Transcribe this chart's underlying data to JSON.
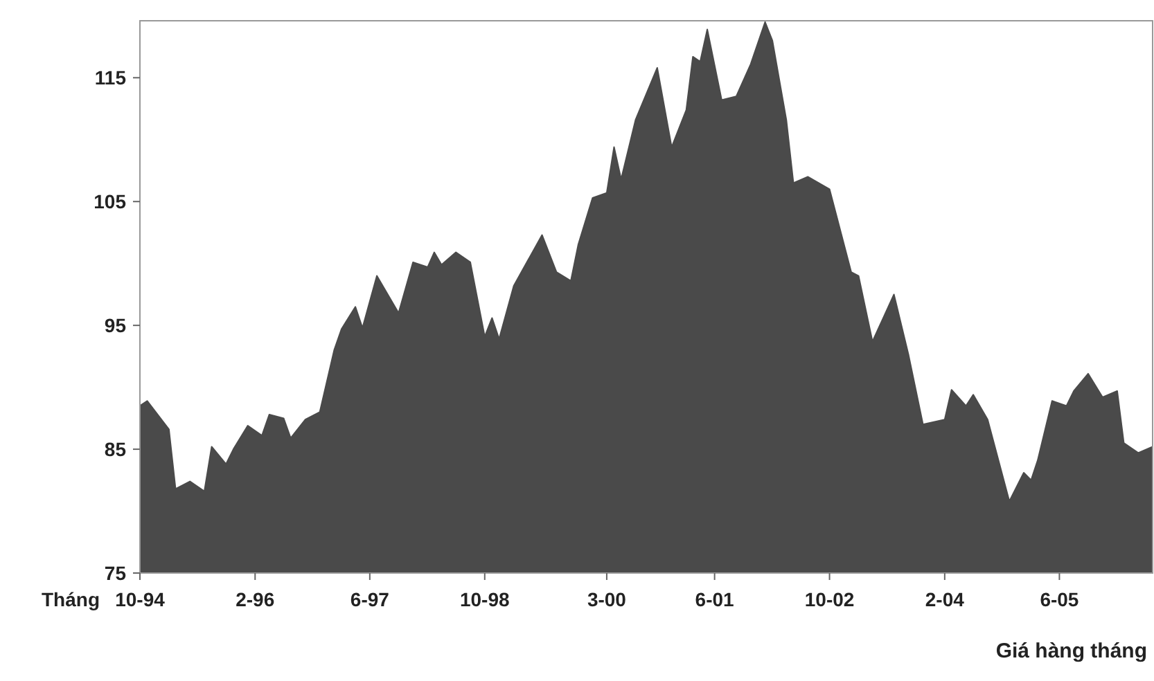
{
  "chart_data": {
    "type": "area",
    "xlabel": "Tháng",
    "annotations": [
      "Giá hàng tháng"
    ],
    "x": [
      "1994-10",
      "1994-11",
      "1995-02",
      "1995-03",
      "1995-05",
      "1995-07",
      "1995-08",
      "1995-10",
      "1995-11",
      "1996-01",
      "1996-03",
      "1996-04",
      "1996-06",
      "1996-07",
      "1996-09",
      "1996-11",
      "1997-01",
      "1997-02",
      "1997-04",
      "1997-05",
      "1997-07",
      "1997-10",
      "1997-12",
      "1998-02",
      "1998-03",
      "1998-04",
      "1998-06",
      "1998-08",
      "1998-10",
      "1998-11",
      "1998-12",
      "1999-02",
      "1999-06",
      "1999-08",
      "1999-10",
      "1999-11",
      "2000-01",
      "2000-03",
      "2000-04",
      "2000-05",
      "2000-07",
      "2000-10",
      "2000-12",
      "2001-02",
      "2001-03",
      "2001-04",
      "2001-05",
      "2001-07",
      "2001-09",
      "2001-11",
      "2002-01",
      "2002-02",
      "2002-04",
      "2002-05",
      "2002-07",
      "2002-10",
      "2003-01",
      "2003-02",
      "2003-04",
      "2003-07",
      "2003-09",
      "2003-11",
      "2004-02",
      "2004-03",
      "2004-05",
      "2004-06",
      "2004-08",
      "2004-11",
      "2005-01",
      "2005-02",
      "2005-03",
      "2005-05",
      "2005-07",
      "2005-08",
      "2005-10",
      "2005-12",
      "2006-02",
      "2006-03",
      "2006-05",
      "2006-07"
    ],
    "series": [
      {
        "color": "#4a4a4a",
        "values": [
          88.5,
          88.9,
          86.6,
          81.8,
          82.4,
          81.6,
          85.2,
          83.8,
          85.0,
          86.9,
          86.1,
          87.8,
          87.5,
          85.9,
          87.4,
          88.0,
          93.0,
          94.7,
          96.5,
          94.8,
          99.0,
          96.0,
          100.1,
          99.7,
          100.9,
          99.9,
          100.9,
          100.1,
          94.1,
          95.6,
          93.9,
          98.2,
          102.3,
          99.3,
          98.6,
          101.5,
          105.3,
          105.7,
          109.4,
          106.8,
          111.6,
          115.8,
          109.4,
          112.4,
          116.7,
          116.3,
          118.9,
          113.2,
          113.5,
          116.1,
          119.5,
          118.0,
          111.6,
          106.5,
          107.0,
          106.0,
          99.3,
          99.0,
          93.7,
          97.5,
          92.6,
          87.0,
          87.4,
          89.8,
          88.5,
          89.4,
          87.4,
          80.8,
          83.1,
          82.5,
          84.1,
          88.9,
          88.5,
          89.7,
          91.1,
          89.2,
          89.7,
          85.5,
          84.7,
          85.2
        ]
      }
    ],
    "xlim": [
      "1994-10",
      "2006-07"
    ],
    "xticks": [
      {
        "value": "1994-10",
        "label": "10-94"
      },
      {
        "value": "1996-02",
        "label": "2-96"
      },
      {
        "value": "1997-06",
        "label": "6-97"
      },
      {
        "value": "1998-10",
        "label": "10-98"
      },
      {
        "value": "2000-03",
        "label": "3-00"
      },
      {
        "value": "2001-06",
        "label": "6-01"
      },
      {
        "value": "2002-10",
        "label": "10-02"
      },
      {
        "value": "2004-02",
        "label": "2-04"
      },
      {
        "value": "2005-06",
        "label": "6-05"
      }
    ],
    "ylim": [
      75,
      119.6
    ],
    "yticks": [
      75,
      85,
      95,
      105,
      115
    ],
    "grid": false
  }
}
